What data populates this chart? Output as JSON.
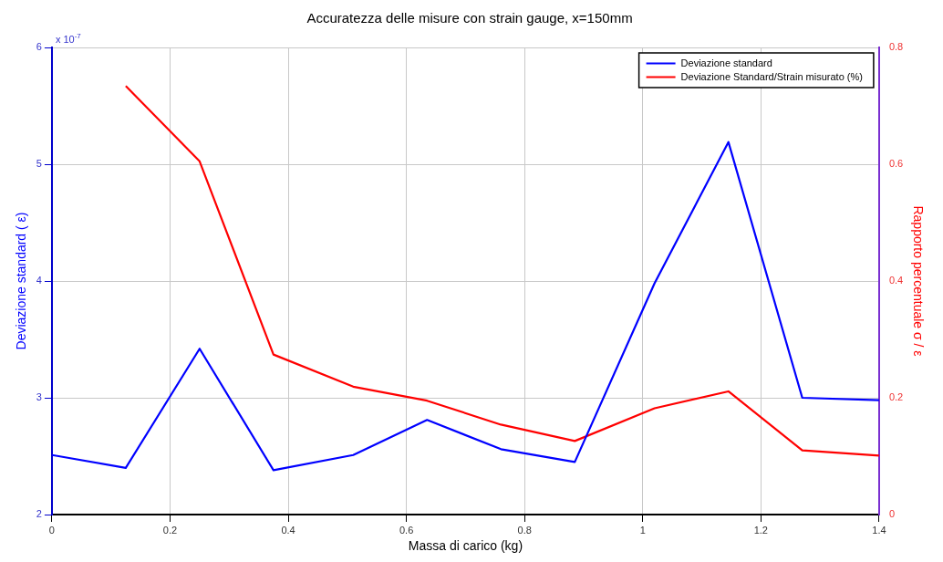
{
  "chart_data": {
    "type": "line",
    "title": "Accuratezza delle misure con strain gauge, x=150mm",
    "xlabel": "Massa di carico (kg)",
    "ylabel": "Deviazione standard ( ε)",
    "y2label": "Rapporto percentuale σ / ε",
    "annotations": [
      "x 10$^{-7}$"
    ],
    "x": [
      0,
      0.125,
      0.25,
      0.375,
      0.51,
      0.635,
      0.76,
      0.885,
      1.02,
      1.145,
      1.27,
      1.4
    ],
    "series": [
      {
        "name": "Deviazione standard",
        "color": "#0000ff",
        "values": [
          2.51,
          2.4,
          3.42,
          2.38,
          2.51,
          2.81,
          2.56,
          2.45,
          3.98,
          5.19,
          3.0,
          2.98
        ]
      },
      {
        "name": "Deviazione Standard/Strain misurato (%)",
        "color": "#ff0000",
        "axis": "y2",
        "values": [
          null,
          0.734,
          0.605,
          0.274,
          0.219,
          0.195,
          0.154,
          0.126,
          0.182,
          0.211,
          0.11,
          0.101
        ]
      }
    ],
    "xlim": [
      0,
      1.4
    ],
    "xticks": [
      0,
      0.2,
      0.4,
      0.6,
      0.8,
      1,
      1.2,
      1.4
    ],
    "ylim": [
      2,
      6
    ],
    "yticks": [
      2,
      3,
      4,
      5,
      6
    ],
    "y2lim": [
      0,
      0.8
    ],
    "y2ticks": [
      0,
      0.2,
      0.4,
      0.6,
      0.8
    ],
    "grid": true,
    "legend": "top right",
    "marker": "none",
    "line_style": "solid"
  }
}
